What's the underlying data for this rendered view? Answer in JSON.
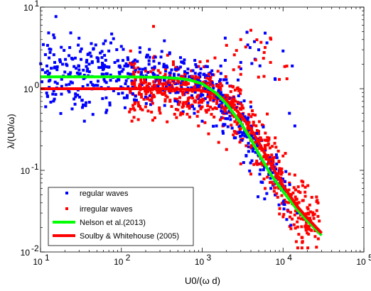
{
  "chart_data": {
    "type": "scatter",
    "title": "",
    "xlabel": "U0/(ω d)",
    "ylabel": "λ/(U0/ω)",
    "xscale": "log",
    "yscale": "log",
    "xlim": [
      10,
      100000
    ],
    "ylim": [
      0.01,
      10
    ],
    "x_ticks": [
      "10",
      "10",
      "10",
      "10",
      "10"
    ],
    "x_tick_exponents": [
      "1",
      "2",
      "3",
      "4",
      "5"
    ],
    "y_ticks": [
      "10",
      "10",
      "10",
      "10"
    ],
    "y_tick_exponents": [
      "-2",
      "-1",
      "0",
      "1"
    ],
    "grid": false,
    "legend_position": "bottom-left",
    "series": [
      {
        "name": "regular waves",
        "kind": "points",
        "color": "#0000ff",
        "seed": 17,
        "count": 650,
        "points": [
          [
            12,
            1.9
          ],
          [
            15,
            2.1
          ],
          [
            20,
            1.6
          ],
          [
            25,
            2.3
          ],
          [
            30,
            1.7
          ],
          [
            40,
            2.0
          ],
          [
            50,
            2.4
          ],
          [
            60,
            1.5
          ],
          [
            70,
            2.9
          ],
          [
            80,
            4.1
          ],
          [
            90,
            2.2
          ],
          [
            100,
            3.3
          ],
          [
            110,
            1.9
          ],
          [
            120,
            2.4
          ],
          [
            150,
            1.7
          ],
          [
            170,
            2.8
          ],
          [
            200,
            1.3
          ],
          [
            220,
            2.2
          ],
          [
            250,
            1.5
          ],
          [
            300,
            1.2
          ],
          [
            350,
            1.0
          ],
          [
            400,
            0.9
          ],
          [
            450,
            1.4
          ],
          [
            500,
            0.7
          ],
          [
            550,
            1.1
          ],
          [
            600,
            0.85
          ],
          [
            700,
            0.6
          ],
          [
            800,
            0.5
          ],
          [
            900,
            0.75
          ],
          [
            1000,
            0.4
          ],
          [
            1200,
            0.55
          ],
          [
            1500,
            0.35
          ],
          [
            1800,
            0.3
          ],
          [
            2000,
            0.5
          ],
          [
            2500,
            0.25
          ],
          [
            3000,
            0.4
          ],
          [
            3500,
            0.15
          ],
          [
            4000,
            0.6
          ],
          [
            5000,
            0.12
          ],
          [
            6000,
            0.2
          ],
          [
            7000,
            0.08
          ],
          [
            8000,
            0.05
          ],
          [
            9000,
            0.1
          ],
          [
            10000,
            0.04
          ],
          [
            12000,
            0.5
          ],
          [
            15000,
            0.03
          ],
          [
            20000,
            0.025
          ],
          [
            5000,
            3.0
          ],
          [
            6000,
            4.8
          ],
          [
            4500,
            2.3
          ],
          [
            8000,
            1.3
          ],
          [
            10000,
            2.9
          ],
          [
            13000,
            1.9
          ],
          [
            14000,
            0.35
          ],
          [
            3000,
            2.1
          ]
        ]
      },
      {
        "name": "irregular waves",
        "kind": "points",
        "color": "#ff0000",
        "seed": 29,
        "count": 720,
        "points": [
          [
            130,
            2.9
          ],
          [
            160,
            1.8
          ],
          [
            200,
            1.2
          ],
          [
            250,
            2.4
          ],
          [
            300,
            0.9
          ],
          [
            350,
            1.5
          ],
          [
            400,
            0.7
          ],
          [
            450,
            1.3
          ],
          [
            500,
            0.55
          ],
          [
            600,
            0.9
          ],
          [
            700,
            0.45
          ],
          [
            800,
            0.7
          ],
          [
            900,
            0.35
          ],
          [
            1000,
            0.6
          ],
          [
            1200,
            0.28
          ],
          [
            1400,
            0.45
          ],
          [
            1600,
            0.22
          ],
          [
            1800,
            0.35
          ],
          [
            2000,
            0.18
          ],
          [
            2500,
            0.3
          ],
          [
            3000,
            0.12
          ],
          [
            3500,
            0.2
          ],
          [
            4000,
            0.09
          ],
          [
            5000,
            0.15
          ],
          [
            6000,
            0.06
          ],
          [
            7000,
            0.1
          ],
          [
            8000,
            0.05
          ],
          [
            10000,
            0.04
          ],
          [
            12000,
            0.07
          ],
          [
            15000,
            0.03
          ],
          [
            18000,
            0.025
          ],
          [
            20000,
            0.035
          ],
          [
            25000,
            0.02
          ],
          [
            28000,
            0.018
          ],
          [
            2000,
            3.4
          ],
          [
            2500,
            2.6
          ],
          [
            3000,
            4.0
          ],
          [
            4000,
            5.2
          ],
          [
            6000,
            3.2
          ],
          [
            7000,
            2.1
          ],
          [
            9000,
            1.3
          ],
          [
            250,
            5.8
          ],
          [
            3000,
            1.5
          ],
          [
            8000,
            0.25
          ],
          [
            10000,
            0.15
          ],
          [
            12000,
            0.09
          ],
          [
            5000,
            0.3
          ],
          [
            3000,
            0.45
          ]
        ]
      },
      {
        "name": "Nelson et al.(2013)",
        "kind": "line",
        "color": "#00ff00",
        "x": [
          10,
          50,
          100,
          200,
          300,
          500,
          700,
          1000,
          1500,
          2000,
          3000,
          4000,
          5000,
          7000,
          10000,
          15000,
          20000,
          30000
        ],
        "y": [
          1.4,
          1.4,
          1.4,
          1.39,
          1.38,
          1.34,
          1.28,
          1.15,
          0.88,
          0.65,
          0.38,
          0.24,
          0.16,
          0.09,
          0.055,
          0.033,
          0.024,
          0.016
        ]
      },
      {
        "name": "Soulby & Whitehouse (2005)",
        "kind": "line",
        "color": "#ff0000",
        "x": [
          10,
          50,
          100,
          200,
          300,
          500,
          700,
          1000,
          1500,
          2000,
          3000,
          4000,
          5000,
          7000,
          10000,
          15000,
          20000,
          30000
        ],
        "y": [
          1.0,
          1.0,
          1.0,
          1.0,
          1.0,
          0.99,
          0.98,
          0.95,
          0.85,
          0.72,
          0.48,
          0.32,
          0.22,
          0.12,
          0.065,
          0.036,
          0.026,
          0.017
        ]
      }
    ]
  }
}
